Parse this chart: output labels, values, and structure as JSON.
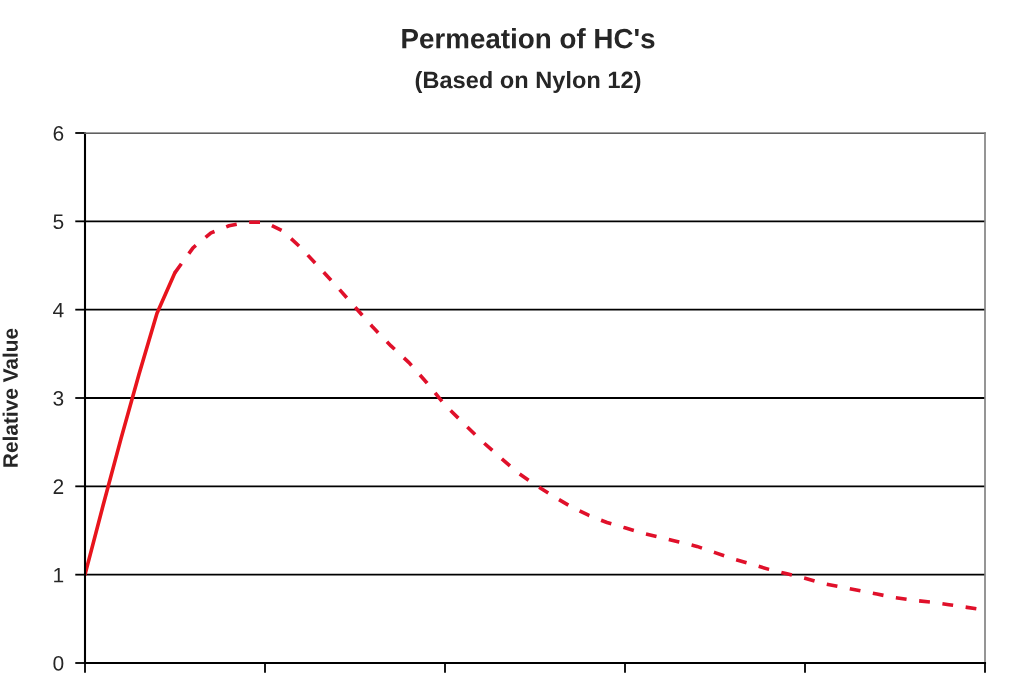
{
  "chart_data": {
    "type": "line",
    "title": "Permeation of HC's",
    "subtitle": "(Based on Nylon 12)",
    "ylabel": "Relative Value",
    "categories": [
      null,
      null,
      null,
      null,
      null,
      null,
      null,
      null,
      null,
      null,
      null,
      null,
      null,
      null,
      null,
      null,
      null,
      null,
      null,
      null,
      null,
      null,
      null,
      null,
      null,
      null,
      null,
      null,
      null,
      null,
      null,
      null,
      null,
      null,
      null,
      null,
      null,
      null,
      null,
      null,
      null,
      null,
      null,
      null,
      null,
      null,
      null,
      null,
      null,
      null,
      null
    ],
    "series": [
      {
        "color": "#e8141c",
        "line_style": "solid",
        "values": [
          1.0,
          1.78,
          2.54,
          3.27,
          3.96,
          4.42,
          null,
          null,
          null,
          null,
          null,
          null,
          null,
          null,
          null,
          null,
          null,
          null,
          null,
          null,
          null,
          null,
          null,
          null,
          null,
          null,
          null,
          null,
          null,
          null,
          null,
          null,
          null,
          null,
          null,
          null,
          null,
          null,
          null,
          null,
          null,
          null,
          null,
          null,
          null,
          null,
          null,
          null,
          null,
          null,
          null
        ]
      },
      {
        "color": "#e0102a",
        "line_style": "dashed",
        "values": [
          null,
          null,
          null,
          null,
          null,
          4.42,
          4.7,
          4.87,
          4.95,
          4.99,
          4.99,
          4.89,
          4.7,
          4.48,
          4.26,
          4.03,
          3.8,
          3.59,
          3.4,
          3.17,
          2.92,
          2.72,
          2.52,
          2.34,
          2.16,
          2.02,
          1.89,
          1.77,
          1.67,
          1.59,
          1.53,
          1.47,
          1.42,
          1.37,
          1.32,
          1.25,
          1.18,
          1.12,
          1.06,
          1.01,
          0.96,
          0.9,
          0.86,
          0.82,
          0.78,
          0.74,
          0.71,
          0.69,
          0.66,
          0.63,
          0.6
        ]
      }
    ],
    "ylim": [
      0,
      6
    ],
    "yticks": [
      0,
      1,
      2,
      3,
      4,
      5,
      6
    ],
    "grid": "y",
    "tick_labels": "y"
  }
}
